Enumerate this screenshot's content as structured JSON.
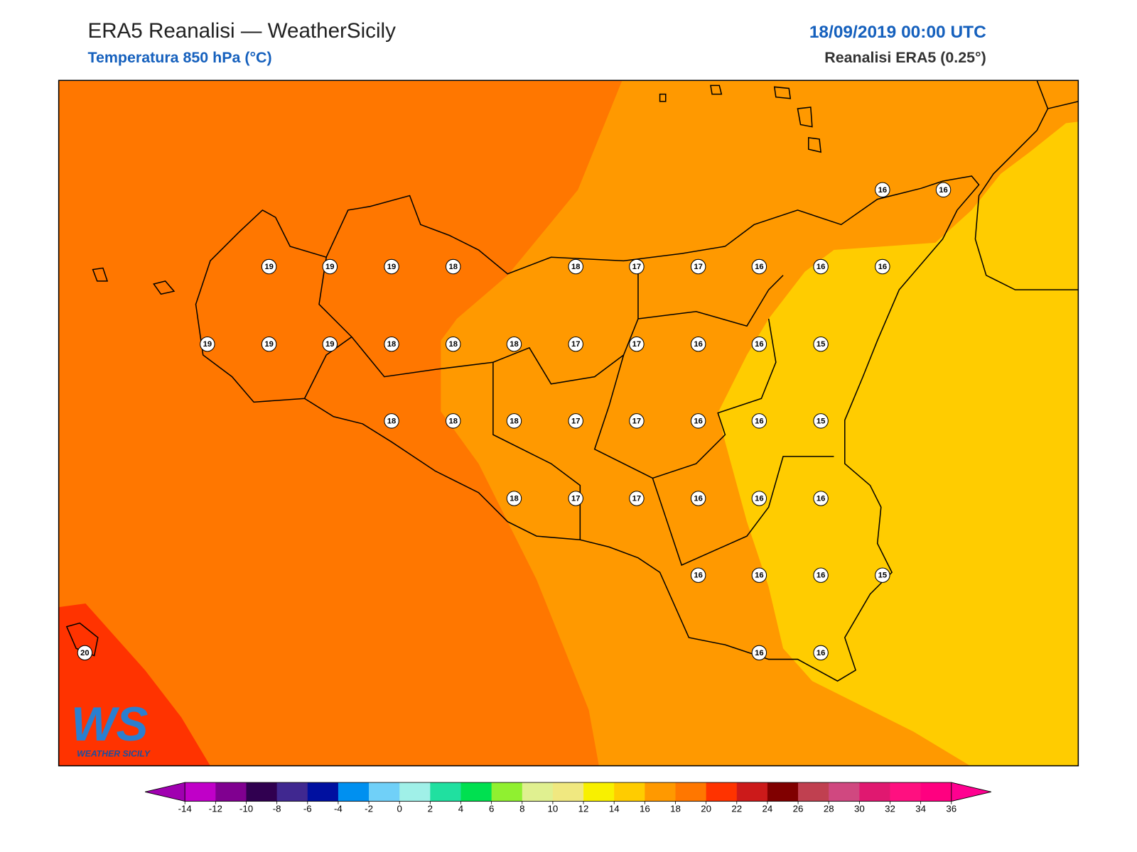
{
  "header": {
    "title": "ERA5 Reanalisi — WeatherSicily",
    "subtitle": "Temperatura 850 hPa (°C)",
    "datetime": "18/09/2019 00:00 UTC",
    "source": "Reanalisi ERA5 (0.25°)"
  },
  "logo": {
    "text": "WS",
    "subtext": "WEATHER SICILY"
  },
  "stations": [
    16,
    16,
    19,
    19,
    19,
    18,
    18,
    17,
    17,
    16,
    16,
    16,
    19,
    19,
    19,
    18,
    18,
    18,
    17,
    17,
    16,
    16,
    15,
    18,
    18,
    18,
    17,
    17,
    16,
    16,
    15,
    18,
    17,
    17,
    16,
    16,
    16,
    16,
    16,
    16,
    15,
    20,
    16,
    16
  ],
  "colorbar": {
    "levels": [
      -14,
      -12,
      -10,
      -8,
      -6,
      -4,
      -2,
      0,
      2,
      4,
      6,
      8,
      10,
      12,
      14,
      16,
      18,
      20,
      22,
      24,
      26,
      28,
      30,
      32,
      34,
      36
    ],
    "colors": [
      "#c000c8",
      "#800090",
      "#300050",
      "#402890",
      "#0010a0",
      "#0090f0",
      "#70d0f8",
      "#a0f0e8",
      "#20e0a0",
      "#00e050",
      "#90f030",
      "#e0f090",
      "#f0e880",
      "#f8f000",
      "#ffcc00",
      "#ff9900",
      "#ff7700",
      "#ff3300",
      "#cc1a1a",
      "#800000",
      "#c04050",
      "#d04880",
      "#e01870",
      "#ff1080",
      "#ff0080"
    ],
    "under_color": "#a000b0",
    "over_color": "#ff0090"
  }
}
